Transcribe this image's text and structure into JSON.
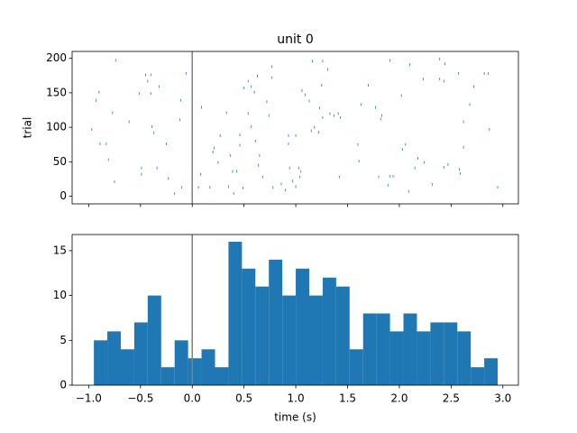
{
  "chart_data": [
    {
      "type": "scatter",
      "title": "unit 0",
      "ylabel": "trial",
      "color": "#1f77b4",
      "x": [
        -0.74,
        -0.9,
        -0.93,
        -0.97,
        -0.89,
        -0.83,
        -0.81,
        -0.75,
        -0.77,
        -0.61,
        -0.45,
        -0.4,
        -0.43,
        -0.51,
        -0.4,
        -0.32,
        -0.39,
        -0.37,
        -0.25,
        -0.49,
        -0.49,
        -0.34,
        -0.23,
        -0.17,
        -0.1,
        -0.06,
        -0.11,
        -0.12,
        0.09,
        0.08,
        0.06,
        0.17,
        0.2,
        0.21,
        0.25,
        0.27,
        0.33,
        0.37,
        0.39,
        0.43,
        0.35,
        0.4,
        0.49,
        0.46,
        0.46,
        0.5,
        0.54,
        0.57,
        0.6,
        0.63,
        0.54,
        0.57,
        0.61,
        0.65,
        0.64,
        0.68,
        0.72,
        0.77,
        0.77,
        0.74,
        0.78,
        0.86,
        0.9,
        0.94,
        0.97,
        1.0,
        1.03,
        1.05,
        1.04,
        0.93,
        1.0,
        0.93,
        1.06,
        1.09,
        1.13,
        1.15,
        1.18,
        1.22,
        1.23,
        1.26,
        1.16,
        1.26,
        1.25,
        1.31,
        1.33,
        1.37,
        1.41,
        1.43,
        1.42,
        1.61,
        1.6,
        1.63,
        1.7,
        1.77,
        1.83,
        1.82,
        1.91,
        1.8,
        1.91,
        1.94,
        1.89,
        2.03,
        2.06,
        2.02,
        2.1,
        2.09,
        2.15,
        2.18,
        2.23,
        2.24,
        2.32,
        2.39,
        2.39,
        2.43,
        2.44,
        2.43,
        2.47,
        2.57,
        2.62,
        2.62,
        2.58,
        2.59,
        2.68,
        2.72,
        2.82,
        2.86,
        2.87,
        2.95
      ],
      "y": [
        197,
        151,
        139,
        97,
        76,
        76,
        53,
        21,
        121,
        108,
        176,
        176,
        167,
        149,
        149,
        159,
        101,
        92,
        76,
        41,
        32,
        41,
        26,
        4,
        13,
        178,
        139,
        111,
        129,
        32,
        13,
        13,
        64,
        70,
        49,
        88,
        121,
        59,
        36,
        36,
        14,
        4,
        12,
        74,
        89,
        157,
        167,
        159,
        151,
        174,
        120,
        101,
        80,
        59,
        45,
        28,
        137,
        172,
        188,
        117,
        13,
        18,
        9,
        41,
        22,
        14,
        41,
        36,
        28,
        88,
        88,
        76,
        153,
        147,
        138,
        95,
        100,
        93,
        128,
        114,
        196,
        196,
        161,
        184,
        120,
        117,
        120,
        114,
        28,
        51,
        75,
        133,
        161,
        129,
        117,
        112,
        197,
        28,
        29,
        29,
        16,
        68,
        75,
        146,
        191,
        7,
        41,
        55,
        170,
        49,
        17,
        199,
        170,
        167,
        192,
        42,
        46,
        178,
        108,
        71,
        39,
        33,
        133,
        159,
        178,
        178,
        97,
        13
      ],
      "xlim": [
        -1.16,
        3.15
      ],
      "ylim": [
        -11,
        210
      ],
      "xticks": [
        -1,
        -0.5,
        0,
        0.5,
        1,
        1.5,
        2,
        2.5,
        3
      ],
      "yticks": [
        0,
        50,
        100,
        150,
        200
      ],
      "vline": 0,
      "vline_color": "#808080"
    },
    {
      "type": "histogram",
      "xlabel": "time (s)",
      "color": "#1f77b4",
      "bins": [
        -0.95,
        -0.82,
        -0.69,
        -0.56,
        -0.43,
        -0.3,
        -0.17,
        -0.04,
        0.09,
        0.22,
        0.35,
        0.48,
        0.61,
        0.74,
        0.87,
        1.0,
        1.13,
        1.26,
        1.39,
        1.52,
        1.65,
        1.78,
        1.91,
        2.04,
        2.17,
        2.3,
        2.43,
        2.56,
        2.69,
        2.82,
        2.95
      ],
      "values": [
        5,
        6,
        4,
        7,
        10,
        2,
        5,
        3,
        4,
        2,
        16,
        13,
        11,
        14,
        10,
        13,
        10,
        12,
        11,
        4,
        8,
        8,
        6,
        8,
        6,
        7,
        7,
        6,
        2,
        3
      ],
      "xlim": [
        -1.16,
        3.15
      ],
      "ylim": [
        0,
        16.8
      ],
      "xticks": [
        {
          "value": -1,
          "label": "−1.0"
        },
        {
          "value": -0.5,
          "label": "−0.5"
        },
        {
          "value": 0,
          "label": "0.0"
        },
        {
          "value": 0.5,
          "label": "0.5"
        },
        {
          "value": 1,
          "label": "1.0"
        },
        {
          "value": 1.5,
          "label": "1.5"
        },
        {
          "value": 2,
          "label": "2.0"
        },
        {
          "value": 2.5,
          "label": "2.5"
        },
        {
          "value": 3,
          "label": "3.0"
        }
      ],
      "yticks": [
        0,
        5,
        10,
        15
      ],
      "vline": 0,
      "vline_color": "#808080"
    }
  ]
}
